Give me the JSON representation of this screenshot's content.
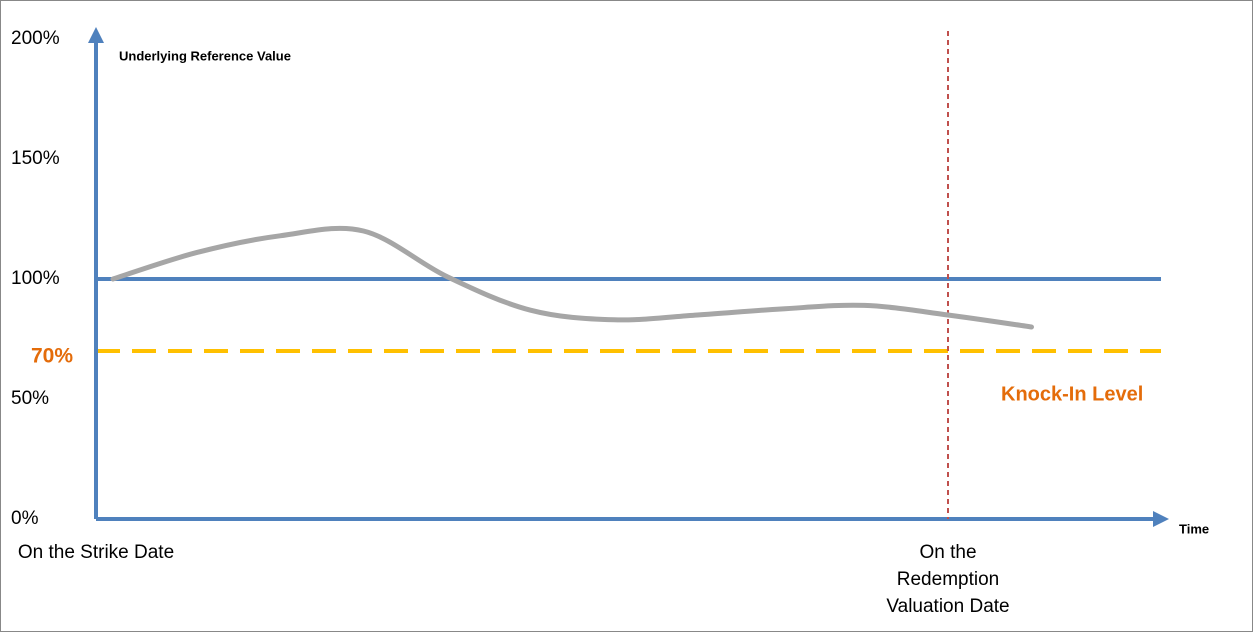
{
  "chart_data": {
    "type": "line",
    "y_axis_title": "Underlying Reference Value",
    "x_axis_title": "Time",
    "categories": [
      "On the Strike Date",
      null,
      null,
      null,
      null,
      null,
      null,
      null,
      null,
      null,
      "On the Redemption Valuation Date",
      null
    ],
    "series": [
      {
        "color": "#a6a6a6",
        "values": [
          100,
          111,
          118,
          120,
          101,
          87,
          83,
          85,
          87.5,
          89,
          85,
          80
        ]
      }
    ],
    "ylim": [
      0,
      200
    ],
    "yticks": [
      {
        "value": 0,
        "label": "0%"
      },
      {
        "value": 50,
        "label": "50%"
      },
      {
        "value": 100,
        "label": "100%"
      },
      {
        "value": 150,
        "label": "150%"
      },
      {
        "value": 200,
        "label": "200%"
      }
    ],
    "axis_color": "#4f81bd",
    "reference_lines": [
      {
        "value": 100,
        "color": "#4f81bd",
        "style": "solid"
      },
      {
        "value": 70,
        "label": "70%",
        "annotation": "Knock-In Level",
        "color": "#ffc000",
        "label_color": "#e46c0a",
        "style": "dashed"
      }
    ],
    "marker_color": "#c0504d",
    "grid": false
  }
}
